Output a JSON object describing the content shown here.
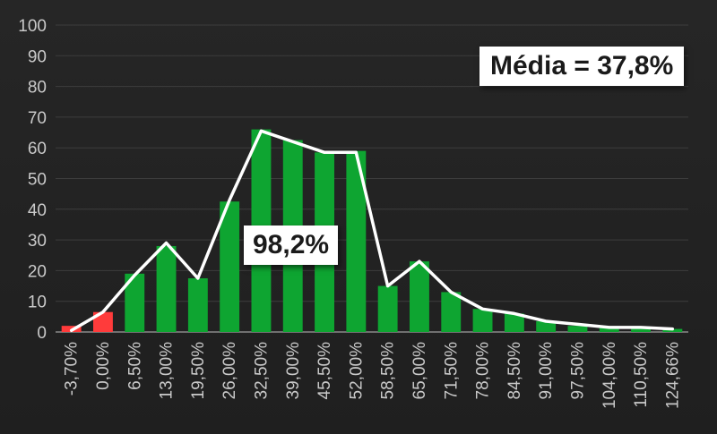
{
  "chart_data": {
    "type": "bar",
    "categories": [
      "-3,70%",
      "0,00%",
      "6,50%",
      "13,00%",
      "19,50%",
      "26,00%",
      "32,50%",
      "39,00%",
      "45,50%",
      "52,00%",
      "58,50%",
      "65,00%",
      "71,50%",
      "78,00%",
      "84,50%",
      "91,00%",
      "97,50%",
      "104,00%",
      "110,50%",
      "124,66%"
    ],
    "values": [
      2,
      6.5,
      19,
      28,
      17.5,
      42.5,
      66,
      62.5,
      58.5,
      59,
      15,
      23,
      13,
      7.5,
      6,
      3.5,
      2,
      1.5,
      1.5,
      1
    ],
    "line_values": [
      0.5,
      6.5,
      18.5,
      29,
      17.5,
      43,
      65.5,
      62,
      58.5,
      58.5,
      15,
      23,
      13,
      7.5,
      6,
      3.5,
      2.5,
      1.5,
      1.5,
      1
    ],
    "bar_colors": [
      "#ff3b3b",
      "#ff3b3b",
      "#0ea531",
      "#0ea531",
      "#0ea531",
      "#0ea531",
      "#0ea531",
      "#0ea531",
      "#0ea531",
      "#0ea531",
      "#0ea531",
      "#0ea531",
      "#0ea531",
      "#0ea531",
      "#0ea531",
      "#0ea531",
      "#0ea531",
      "#0ea531",
      "#0ea531",
      "#0ea531"
    ],
    "yticks": [
      "0",
      "10",
      "20",
      "30",
      "40",
      "50",
      "60",
      "70",
      "80",
      "90",
      "100"
    ],
    "ylim": [
      0,
      100
    ],
    "grid": true,
    "line_color": "#ffffff"
  },
  "annotations": {
    "mean_label": "Média = 37,8%",
    "positive_share": "98,2%"
  }
}
